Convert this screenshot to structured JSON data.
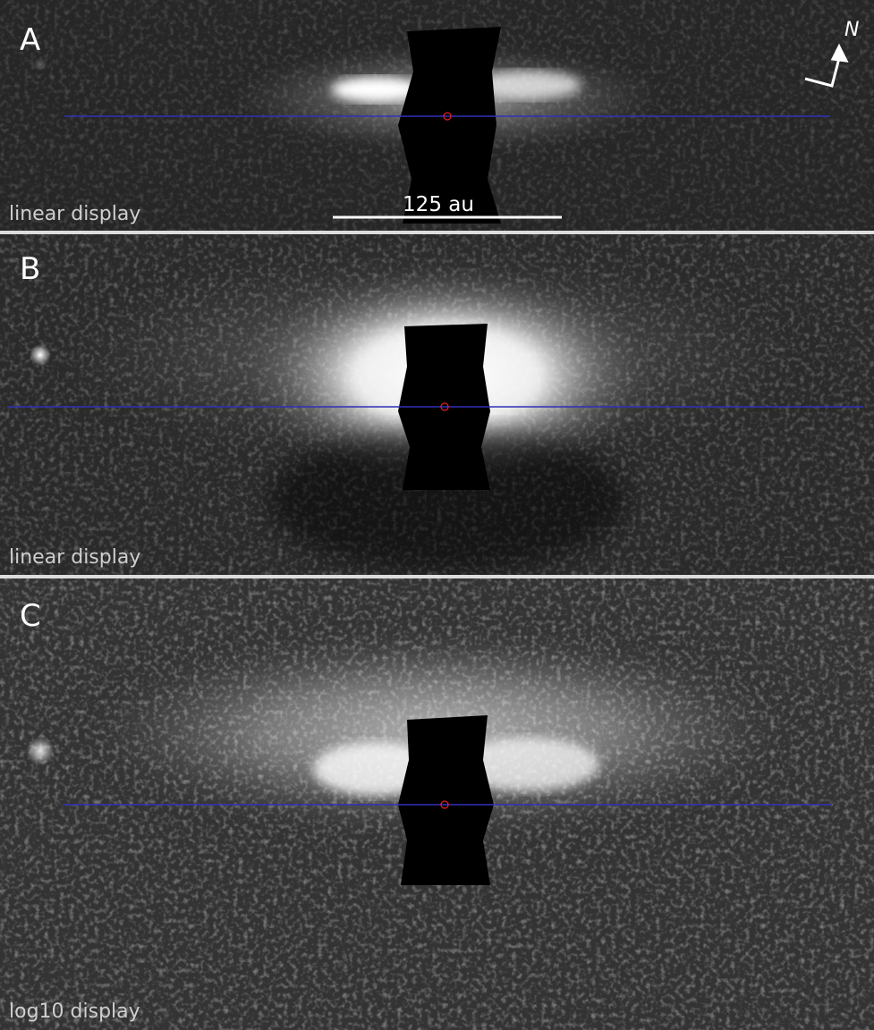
{
  "panels": [
    {
      "label": "A",
      "caption": "linear display"
    },
    {
      "label": "B",
      "caption": "linear display"
    },
    {
      "label": "C",
      "caption": "log10 display"
    }
  ],
  "scale_bar": "125 au",
  "compass": "N"
}
